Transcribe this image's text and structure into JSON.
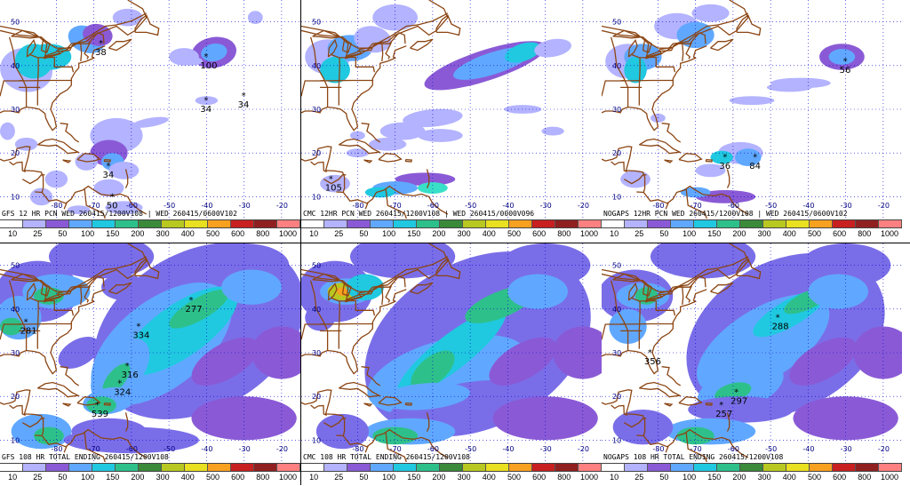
{
  "colors": {
    "bin": [
      "#ffffff",
      "#b3b3ff",
      "#8a5ad6",
      "#7a6ee8",
      "#60a8ff",
      "#20c8e0",
      "#38e0c8",
      "#2ec08a",
      "#3a8a3a",
      "#b8c820",
      "#e8e020",
      "#f8a020",
      "#e86020",
      "#c82020",
      "#902020",
      "#ff8080"
    ],
    "coast": "#8b4513",
    "grid": "#0000cc"
  },
  "colorbar_labels": [
    "10",
    "25",
    "50",
    "100",
    "150",
    "200",
    "300",
    "400",
    "500",
    "600",
    "800",
    "1000"
  ],
  "panels": [
    {
      "id": "gfs12",
      "caption": "GFS 12 HR PCN WED 260415/1200V108 | WED 260415/0600V102",
      "max_labels": [
        {
          "text": "100",
          "lon": -40,
          "lat": 42
        },
        {
          "text": "34",
          "lon": -40,
          "lat": 32
        },
        {
          "text": "34",
          "lon": -30,
          "lat": 33
        },
        {
          "text": "38",
          "lon": -68,
          "lat": 45
        },
        {
          "text": "34",
          "lon": -66,
          "lat": 17
        },
        {
          "text": "50",
          "lon": -65,
          "lat": 10
        }
      ]
    },
    {
      "id": "cmc12",
      "caption": "CMC 12HR PCN WED 260415/1200V108 | WED 260415/0000V096",
      "max_labels": [
        {
          "text": "105",
          "lon": -87,
          "lat": 14
        }
      ]
    },
    {
      "id": "ngp12",
      "caption": "NOGAPS 12HR PCN WED 260415/1200V108 | WED 260415/0600V102",
      "max_labels": [
        {
          "text": "56",
          "lon": -30,
          "lat": 41
        },
        {
          "text": "36",
          "lon": -62,
          "lat": 19
        },
        {
          "text": "84",
          "lon": -54,
          "lat": 19
        }
      ]
    },
    {
      "id": "gfs108",
      "caption": "GFS 108 HR TOTAL ENDING 260415/1200V108",
      "max_labels": [
        {
          "text": "277",
          "lon": -44,
          "lat": 42
        },
        {
          "text": "334",
          "lon": -58,
          "lat": 36
        },
        {
          "text": "316",
          "lon": -61,
          "lat": 27
        },
        {
          "text": "324",
          "lon": -63,
          "lat": 23
        },
        {
          "text": "539",
          "lon": -69,
          "lat": 18
        },
        {
          "text": "281",
          "lon": -88,
          "lat": 37
        }
      ]
    },
    {
      "id": "cmc108",
      "caption": "CMC 108 HR TOTAL ENDING 260415/1200V108",
      "max_labels": []
    },
    {
      "id": "ngp108",
      "caption": "NOGAPS 108 HR TOTAL ENDING 260415/1200V108",
      "max_labels": [
        {
          "text": "288",
          "lon": -48,
          "lat": 38
        },
        {
          "text": "297",
          "lon": -59,
          "lat": 21
        },
        {
          "text": "257",
          "lon": -63,
          "lat": 18
        },
        {
          "text": "356",
          "lon": -82,
          "lat": 30
        }
      ]
    }
  ],
  "axis": {
    "lon_ticks": [
      "-80",
      "-70",
      "-60",
      "-50",
      "-40",
      "-30",
      "-20"
    ],
    "lat_ticks": [
      "10",
      "20",
      "30",
      "40",
      "50"
    ]
  }
}
